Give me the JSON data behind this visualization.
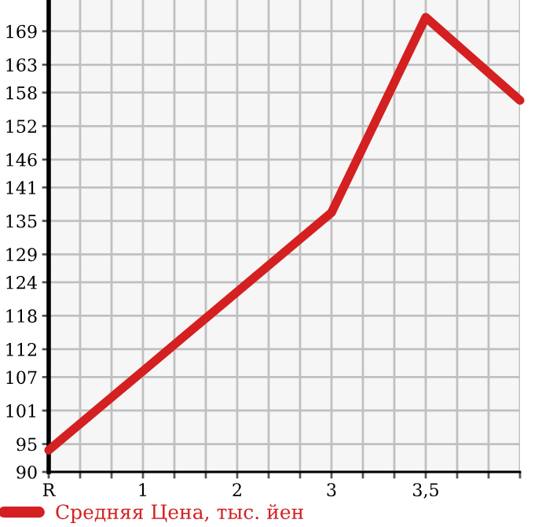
{
  "chart_data": {
    "type": "line",
    "categories": [
      "R",
      "1",
      "2",
      "3",
      "3,5",
      null
    ],
    "series": [
      {
        "name": "Средняя Цена, тыс. йен",
        "color": "#d42020",
        "values": [
          93.9,
          108.1,
          122.3,
          136.5,
          171.5,
          156.6
        ]
      }
    ],
    "ylim": [
      90,
      174.6
    ],
    "yticks": [
      90,
      95,
      101,
      107,
      112,
      118,
      124,
      129,
      135,
      141,
      146,
      152,
      158,
      163,
      169
    ],
    "grid": true,
    "legend": "bottom left",
    "marker": "none",
    "line_style": "solid"
  }
}
